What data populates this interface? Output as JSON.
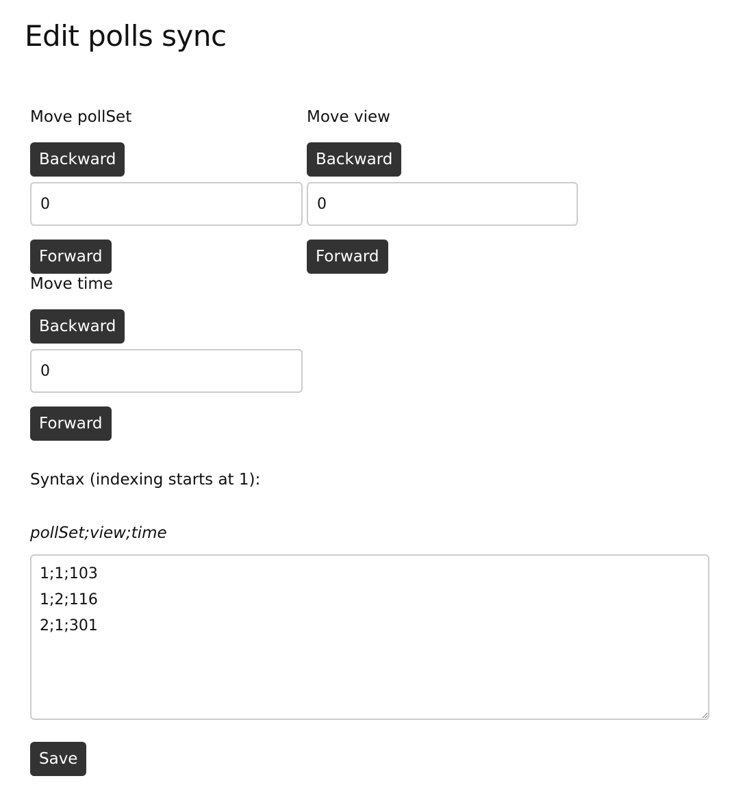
{
  "page": {
    "title": "Edit polls sync"
  },
  "groups": [
    {
      "label": "Move pollSet",
      "backward": "Backward",
      "value": "0",
      "forward": "Forward"
    },
    {
      "label": "Move view",
      "backward": "Backward",
      "value": "0",
      "forward": "Forward"
    },
    {
      "label": "Move time",
      "backward": "Backward",
      "value": "0",
      "forward": "Forward"
    }
  ],
  "syntax": {
    "heading": "Syntax (indexing starts at 1):",
    "format": "pollSet;view;time"
  },
  "sync_text": "1;1;103\n1;2;116\n2;1;301",
  "save_label": "Save"
}
